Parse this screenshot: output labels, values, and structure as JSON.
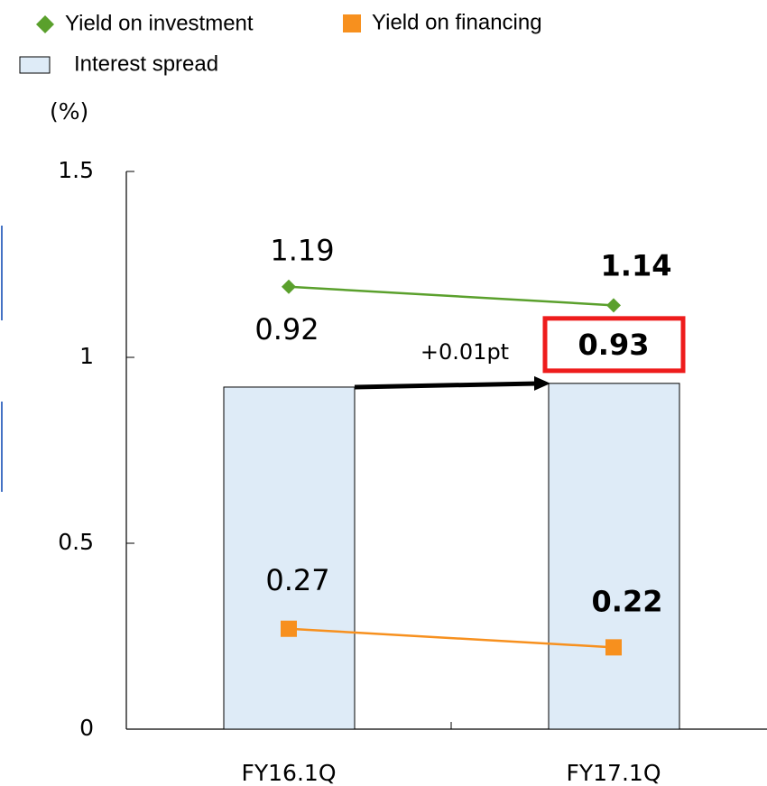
{
  "chart_data": {
    "type": "bar_line",
    "y_unit_label": "(%)",
    "categories": [
      "FY16.1Q",
      "FY17.1Q"
    ],
    "series": [
      {
        "name": "Yield on investment",
        "type": "line",
        "marker": "diamond",
        "color": "#5aa02c",
        "values": [
          1.19,
          1.14
        ]
      },
      {
        "name": "Yield on financing",
        "type": "line",
        "marker": "square",
        "color": "#f7901e",
        "values": [
          0.27,
          0.22
        ]
      },
      {
        "name": "Interest spread",
        "type": "bar",
        "color": "#deebf7",
        "values": [
          0.92,
          0.93
        ]
      }
    ],
    "annotation": "+0.01pt",
    "highlight_color": "#ee1c1c",
    "ylim": [
      0,
      1.5
    ],
    "yticks": [
      0,
      0.5,
      1,
      1.5
    ],
    "grid": false
  }
}
